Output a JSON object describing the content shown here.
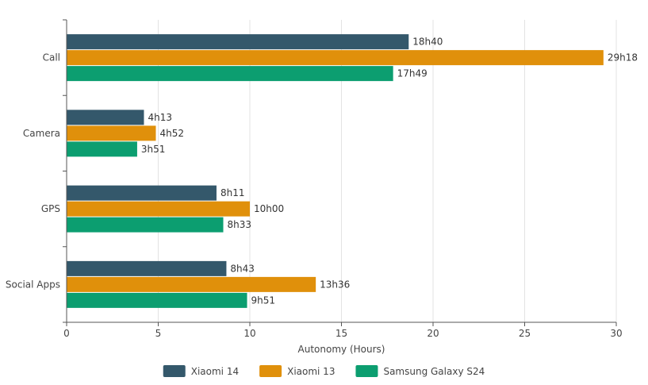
{
  "chart_data": {
    "type": "bar",
    "orientation": "horizontal",
    "title": "",
    "xlabel": "Autonomy (Hours)",
    "ylabel": "",
    "xlim": [
      0,
      30
    ],
    "x_ticks": [
      0,
      5,
      10,
      15,
      20,
      25,
      30
    ],
    "grid": "vertical",
    "legend_position": "bottom-center",
    "categories": [
      "Call",
      "Camera",
      "GPS",
      "Social Apps"
    ],
    "series": [
      {
        "name": "Xiaomi 14",
        "color": "#34586b",
        "values": [
          18.67,
          4.22,
          8.18,
          8.72
        ],
        "labels": [
          "18h40",
          "4h13",
          "8h11",
          "8h43"
        ]
      },
      {
        "name": "Xiaomi 13",
        "color": "#e0900b",
        "values": [
          29.3,
          4.87,
          10.0,
          13.6
        ],
        "labels": [
          "29h18",
          "4h52",
          "10h00",
          "13h36"
        ]
      },
      {
        "name": "Samsung Galaxy S24",
        "color": "#0c9e70",
        "values": [
          17.82,
          3.85,
          8.55,
          9.85
        ],
        "labels": [
          "17h49",
          "3h51",
          "8h33",
          "9h51"
        ]
      }
    ]
  }
}
